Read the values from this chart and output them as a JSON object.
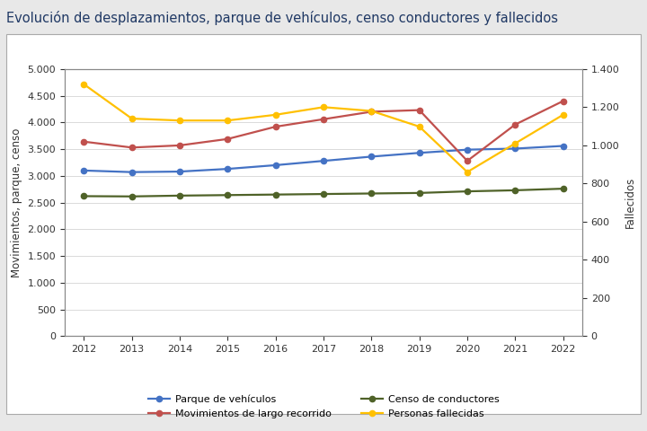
{
  "title": "Evolución de desplazamientos, parque de vehículos, censo conductores y fallecidos",
  "years": [
    2012,
    2013,
    2014,
    2015,
    2016,
    2017,
    2018,
    2019,
    2020,
    2021,
    2022
  ],
  "parque_vehiculos": [
    3100,
    3070,
    3080,
    3130,
    3200,
    3280,
    3360,
    3430,
    3490,
    3510,
    3560
  ],
  "movimientos_largo": [
    3640,
    3530,
    3570,
    3690,
    3920,
    4060,
    4200,
    4230,
    3280,
    3960,
    4400
  ],
  "censo_conductores": [
    2620,
    2615,
    2630,
    2640,
    2650,
    2660,
    2670,
    2680,
    2710,
    2730,
    2760
  ],
  "personas_fallecidas": [
    1320,
    1140,
    1130,
    1130,
    1160,
    1200,
    1180,
    1098,
    860,
    1010,
    1160
  ],
  "color_parque": "#4472C4",
  "color_movimientos": "#C0504D",
  "color_censo": "#4F6228",
  "color_fallecidas": "#FFC000",
  "ylabel_left": "Movimientos, parque, censo",
  "ylabel_right": "Fallecidos",
  "ylim_left": [
    0,
    5000
  ],
  "ylim_right": [
    0,
    1400
  ],
  "yticks_left": [
    0,
    500,
    1000,
    1500,
    2000,
    2500,
    3000,
    3500,
    4000,
    4500,
    5000
  ],
  "yticks_right": [
    0,
    200,
    400,
    600,
    800,
    1000,
    1200,
    1400
  ],
  "legend_labels": [
    "Parque de vehículos",
    "Movimientos de largo recorrido",
    "Censo de conductores",
    "Personas fallecidas"
  ],
  "background_color": "#FFFFFF",
  "outer_bg": "#E8E8E8",
  "title_color": "#1F3864",
  "title_fontsize": 10.5,
  "axis_color": "#888888",
  "grid_color": "#CCCCCC"
}
